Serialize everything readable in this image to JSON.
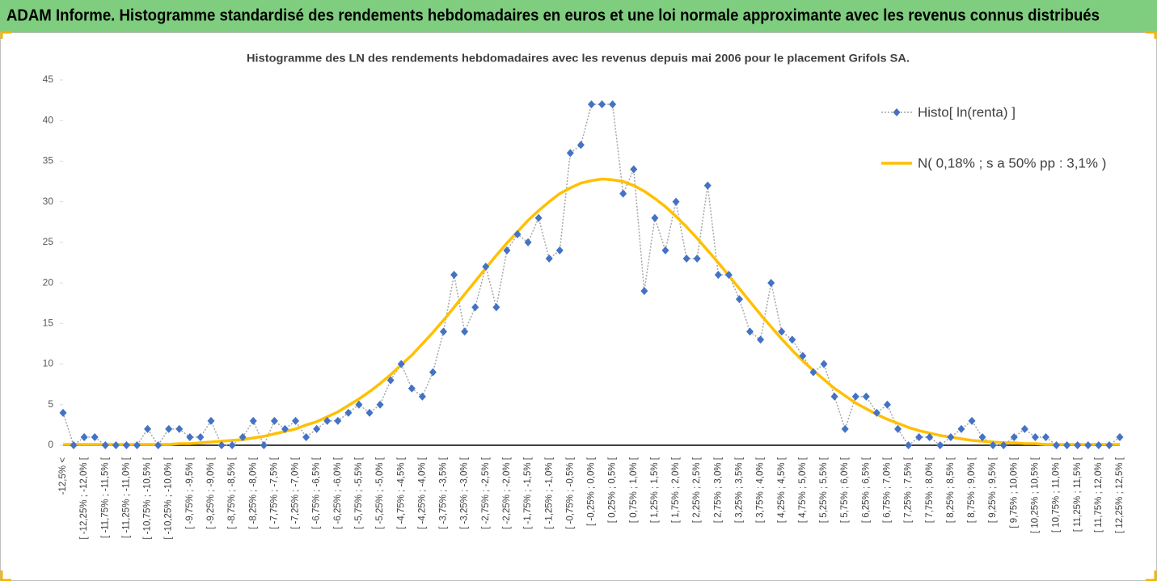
{
  "header": {
    "title": "ADAM Informe. Histogramme standardisé des rendements hebdomadaires en euros et une loi normale approximante avec les revenus connus distribués"
  },
  "chart_data": {
    "type": "line",
    "title": "Histogramme des LN des rendements hebdomadaires avec les revenus depuis mai 2006 pour le placement Grifols SA.",
    "categories": [
      "-12,5% <",
      null,
      "[ -12,25% ; -12,0% [",
      null,
      "[ -11,75% ; -11,5% [",
      null,
      "[ -11,25% ; -11,0% [",
      null,
      "[ -10,75% ; -10,5% [",
      null,
      "[ -10,25% ; -10,0% [",
      null,
      "[ -9,75% ; -9,5% [",
      null,
      "[ -9,25% ; -9,0% [",
      null,
      "[ -8,75% ; -8,5% [",
      null,
      "[ -8,25% ; -8,0% [",
      null,
      "[ -7,75% ; -7,5% [",
      null,
      "[ -7,25% ; -7,0% [",
      null,
      "[ -6,75% ; -6,5% [",
      null,
      "[ -6,25% ; -6,0% [",
      null,
      "[ -5,75% ; -5,5% [",
      null,
      "[ -5,25% ; -5,0% [",
      null,
      "[ -4,75% ; -4,5% [",
      null,
      "[ -4,25% ; -4,0% [",
      null,
      "[ -3,75% ; -3,5% [",
      null,
      "[ -3,25% ; -3,0% [",
      null,
      "[ -2,75% ; -2,5% [",
      null,
      "[ -2,25% ; -2,0% [",
      null,
      "[ -1,75% ; -1,5% [",
      null,
      "[ -1,25% ; -1,0% [",
      null,
      "[ -0,75% ; -0,5% [",
      null,
      "[ -0,25% ; 0,0% [",
      null,
      "[ 0,25% ; 0,5% [",
      null,
      "[ 0,75% ; 1,0% [",
      null,
      "[ 1,25% ; 1,5% [",
      null,
      "[ 1,75% ; 2,0% [",
      null,
      "[ 2,25% ; 2,5% [",
      null,
      "[ 2,75% ; 3,0% [",
      null,
      "[ 3,25% ; 3,5% [",
      null,
      "[ 3,75% ; 4,0% [",
      null,
      "[ 4,25% ; 4,5% [",
      null,
      "[ 4,75% ; 5,0% [",
      null,
      "[ 5,25% ; 5,5% [",
      null,
      "[ 5,75% ; 6,0% [",
      null,
      "[ 6,25% ; 6,5% [",
      null,
      "[ 6,75% ; 7,0% [",
      null,
      "[ 7,25% ; 7,5% [",
      null,
      "[ 7,75% ; 8,0% [",
      null,
      "[ 8,25% ; 8,5% [",
      null,
      "[ 8,75% ; 9,0% [",
      null,
      "[ 9,25% ; 9,5% [",
      null,
      "[ 9,75% ; 10,0% [",
      null,
      "[ 10,25% ; 10,5% [",
      null,
      "[ 10,75% ; 11,0% [",
      null,
      "[ 11,25% ; 11,5% [",
      null,
      "[ 11,75% ; 12,0% [",
      null,
      "[ 12,25% ; 12,5% ["
    ],
    "series": [
      {
        "name": "Histo[ ln(renta) ]",
        "color": "#4472c4",
        "line_color": "#a6a6a6",
        "values": [
          4,
          0,
          1,
          1,
          0,
          0,
          0,
          0,
          2,
          0,
          2,
          2,
          1,
          1,
          3,
          0,
          0,
          1,
          3,
          0,
          3,
          2,
          3,
          1,
          2,
          3,
          3,
          4,
          5,
          4,
          5,
          8,
          10,
          7,
          6,
          9,
          14,
          21,
          14,
          17,
          22,
          17,
          24,
          26,
          25,
          28,
          23,
          24,
          36,
          37,
          42,
          42,
          42,
          31,
          34,
          19,
          28,
          24,
          30,
          23,
          23,
          32,
          21,
          21,
          18,
          14,
          13,
          20,
          14,
          13,
          11,
          9,
          10,
          6,
          2,
          6,
          6,
          4,
          5,
          2,
          0,
          1,
          1,
          0,
          1,
          2,
          3,
          1,
          0,
          0,
          1,
          2,
          1,
          1,
          0,
          0,
          0,
          0,
          0,
          0,
          1
        ]
      },
      {
        "name": "N( 0,18% ; s a 50% pp : 3,1% )",
        "color": "#ffc000",
        "values": [
          0.1,
          0.1,
          0.1,
          0.1,
          0.1,
          0.1,
          0.1,
          0.1,
          0.1,
          0.1,
          0.1,
          0.2,
          0.2,
          0.3,
          0.4,
          0.5,
          0.6,
          0.7,
          0.9,
          1.1,
          1.4,
          1.7,
          2.0,
          2.5,
          2.9,
          3.5,
          4.1,
          4.9,
          5.7,
          6.6,
          7.6,
          8.7,
          9.9,
          11.1,
          12.5,
          13.9,
          15.4,
          17.0,
          18.6,
          20.2,
          21.8,
          23.4,
          24.9,
          26.3,
          27.7,
          28.9,
          30.0,
          31.0,
          31.7,
          32.3,
          32.6,
          32.8,
          32.7,
          32.5,
          32.0,
          31.3,
          30.4,
          29.4,
          28.2,
          26.9,
          25.5,
          24.0,
          22.5,
          20.9,
          19.3,
          17.7,
          16.1,
          14.6,
          13.1,
          11.7,
          10.4,
          9.2,
          8.1,
          7.0,
          6.1,
          5.2,
          4.5,
          3.8,
          3.2,
          2.7,
          2.2,
          1.8,
          1.5,
          1.2,
          1.0,
          0.8,
          0.6,
          0.5,
          0.4,
          0.3,
          0.3,
          0.2,
          0.2,
          0.1,
          0.1,
          0.1,
          0.1,
          0.1,
          0.1,
          0.1,
          0.1
        ]
      }
    ],
    "ylim": [
      0,
      45
    ],
    "yticks": [
      0,
      5,
      10,
      15,
      20,
      25,
      30,
      35,
      40,
      45
    ],
    "legend": "upper right"
  }
}
